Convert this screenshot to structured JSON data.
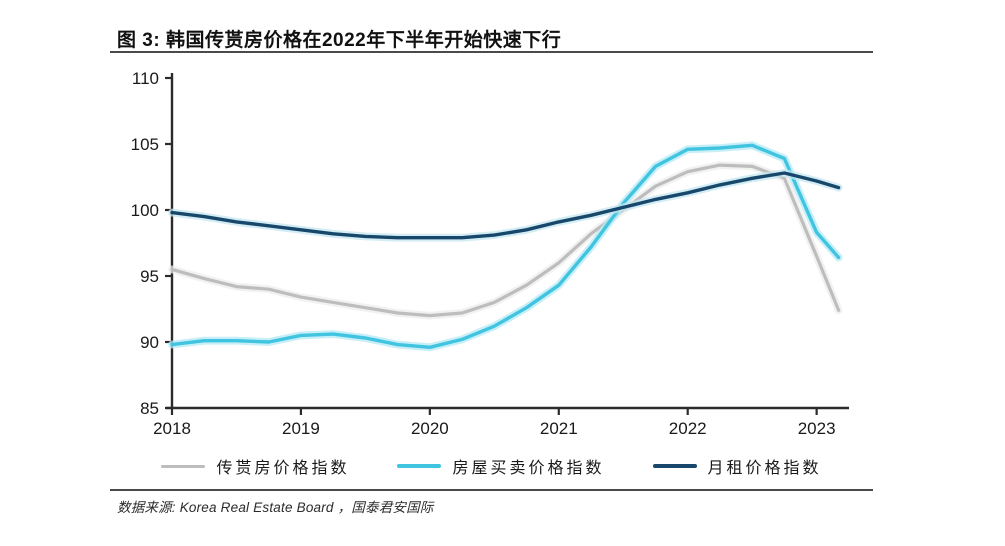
{
  "page": {
    "title": "图 3:  韩国传贳房价格在2022年下半年开始快速下行",
    "source": "数据来源:  Korea Real Estate Board ，国泰君安国际"
  },
  "chart_data": {
    "type": "line",
    "title": "韩国传贳房价格在2022年下半年开始快速下行",
    "xlabel": "",
    "ylabel": "",
    "xlim": [
      2018,
      2023.22
    ],
    "ylim": [
      85,
      110
    ],
    "xticks": [
      2018,
      2019,
      2020,
      2021,
      2022,
      2023
    ],
    "yticks": [
      85,
      90,
      95,
      100,
      105,
      110
    ],
    "grid": false,
    "legend_position": "bottom",
    "x": [
      2018.0,
      2018.25,
      2018.5,
      2018.75,
      2019.0,
      2019.25,
      2019.5,
      2019.75,
      2020.0,
      2020.25,
      2020.5,
      2020.75,
      2021.0,
      2021.25,
      2021.5,
      2021.75,
      2022.0,
      2022.25,
      2022.5,
      2022.75,
      2023.0,
      2023.17
    ],
    "series": [
      {
        "name": "传贳房价格指数",
        "color": "#bdbdbd",
        "halo": "#ececec",
        "stroke_width": 3.2,
        "values": [
          95.5,
          94.8,
          94.2,
          94.0,
          93.4,
          93.0,
          92.6,
          92.2,
          92.0,
          92.2,
          93.0,
          94.3,
          96.0,
          98.2,
          100.0,
          101.8,
          102.9,
          103.4,
          103.3,
          102.4,
          96.5,
          92.4
        ]
      },
      {
        "name": "房屋买卖价格指数",
        "color": "#40c4e0",
        "halo": "#b5e9f5",
        "stroke_width": 3.4,
        "values": [
          89.8,
          90.1,
          90.1,
          90.0,
          90.5,
          90.6,
          90.3,
          89.8,
          89.6,
          90.2,
          91.2,
          92.6,
          94.3,
          97.2,
          100.5,
          103.3,
          104.6,
          104.7,
          104.9,
          103.9,
          98.3,
          96.4
        ]
      },
      {
        "name": "月租价格指数",
        "color": "#17486b",
        "halo": "#c5e7f2",
        "stroke_width": 3.4,
        "values": [
          99.8,
          99.5,
          99.1,
          98.8,
          98.5,
          98.2,
          98.0,
          97.9,
          97.9,
          97.9,
          98.1,
          98.5,
          99.1,
          99.6,
          100.2,
          100.8,
          101.3,
          101.9,
          102.4,
          102.8,
          102.2,
          101.7
        ]
      }
    ]
  }
}
